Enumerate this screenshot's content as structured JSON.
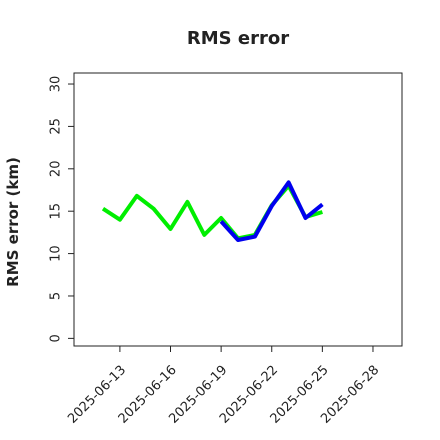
{
  "chart_data": {
    "type": "line",
    "title": "RMS error",
    "y_label": "RMS error (km)",
    "x": [
      "2025-06-12",
      "2025-06-13",
      "2025-06-14",
      "2025-06-15",
      "2025-06-16",
      "2025-06-17",
      "2025-06-18",
      "2025-06-19",
      "2025-06-20",
      "2025-06-21",
      "2025-06-22",
      "2025-06-23",
      "2025-06-24",
      "2025-06-25"
    ],
    "series": [
      {
        "color": "#00ee00",
        "values": [
          15.3,
          14.0,
          16.8,
          15.3,
          12.9,
          16.1,
          12.2,
          14.2,
          11.8,
          12.2,
          15.7,
          18.0,
          14.3,
          14.9
        ]
      },
      {
        "color": "#0000ee",
        "values": [
          null,
          null,
          null,
          null,
          null,
          null,
          null,
          13.8,
          11.6,
          12.0,
          15.6,
          18.4,
          14.2,
          15.8
        ]
      }
    ],
    "xlim": [
      "2025-06-10T06:43",
      "2025-06-29T17:17"
    ],
    "xticks": [
      "2025-06-13",
      "2025-06-16",
      "2025-06-19",
      "2025-06-22",
      "2025-06-25",
      "2025-06-28"
    ],
    "xtick_colors": [
      "#222222",
      "#222222",
      "#228b22",
      "#222222",
      "#222222",
      "#222222"
    ],
    "ylim": [
      -0.9,
      31.3
    ],
    "yticks": [
      0,
      5,
      10,
      15,
      20,
      25,
      30
    ]
  }
}
